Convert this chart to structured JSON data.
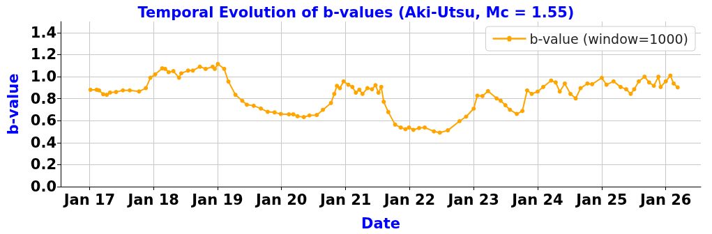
{
  "chart_data": {
    "type": "line",
    "title": "Temporal Evolution of b-values (Aki-Utsu, Mc = 1.55)",
    "xlabel": "Date",
    "ylabel": "b-value",
    "x": [
      "2017-01-06",
      "2017-02-10",
      "2017-02-24",
      "2017-03-20",
      "2017-04-09",
      "2017-04-28",
      "2017-06-01",
      "2017-07-10",
      "2017-08-18",
      "2017-10-10",
      "2017-11-18",
      "2017-12-14",
      "2018-01-10",
      "2018-02-19",
      "2018-03-08",
      "2018-03-28",
      "2018-04-24",
      "2018-05-26",
      "2018-06-08",
      "2018-07-17",
      "2018-08-13",
      "2018-09-22",
      "2018-10-25",
      "2018-12-04",
      "2018-12-16",
      "2019-01-03",
      "2019-02-08",
      "2019-03-04",
      "2019-04-13",
      "2019-05-22",
      "2019-06-17",
      "2019-07-26",
      "2019-09-05",
      "2019-10-14",
      "2019-11-22",
      "2019-12-28",
      "2020-02-12",
      "2020-03-08",
      "2020-04-01",
      "2020-05-07",
      "2020-06-08",
      "2020-07-20",
      "2020-08-24",
      "2020-10-09",
      "2020-10-28",
      "2020-11-12",
      "2020-11-29",
      "2020-12-20",
      "2021-01-16",
      "2021-02-08",
      "2021-02-28",
      "2021-03-20",
      "2021-04-07",
      "2021-05-05",
      "2021-05-31",
      "2021-06-20",
      "2021-07-07",
      "2021-07-23",
      "2021-08-06",
      "2021-09-01",
      "2021-10-10",
      "2021-11-11",
      "2021-12-08",
      "2021-12-28",
      "2022-01-22",
      "2022-02-24",
      "2022-03-28",
      "2022-05-19",
      "2022-06-22",
      "2022-08-07",
      "2022-10-12",
      "2022-11-19",
      "2023-01-01",
      "2023-01-22",
      "2023-02-20",
      "2023-03-24",
      "2023-05-12",
      "2023-06-04",
      "2023-07-01",
      "2023-07-27",
      "2023-09-04",
      "2023-10-06",
      "2023-11-02",
      "2023-11-28",
      "2024-01-01",
      "2024-02-02",
      "2024-03-18",
      "2024-04-13",
      "2024-05-06",
      "2024-06-04",
      "2024-07-06",
      "2024-08-05",
      "2024-09-02",
      "2024-10-11",
      "2024-11-07",
      "2025-01-01",
      "2025-01-28",
      "2025-03-09",
      "2025-04-18",
      "2025-05-20",
      "2025-06-15",
      "2025-07-05",
      "2025-07-31",
      "2025-09-02",
      "2025-09-28",
      "2025-10-25",
      "2025-11-20",
      "2025-12-03",
      "2026-01-01",
      "2026-01-27",
      "2026-02-15",
      "2026-03-10"
    ],
    "series": [
      {
        "name": "b-value (window=1000)",
        "color": "#ffa500",
        "values": [
          0.88,
          0.88,
          0.875,
          0.84,
          0.835,
          0.855,
          0.86,
          0.875,
          0.875,
          0.865,
          0.895,
          0.99,
          1.02,
          1.075,
          1.07,
          1.04,
          1.05,
          0.99,
          1.03,
          1.055,
          1.055,
          1.09,
          1.07,
          1.09,
          1.07,
          1.115,
          1.07,
          0.955,
          0.835,
          0.78,
          0.745,
          0.735,
          0.71,
          0.68,
          0.675,
          0.66,
          0.657,
          0.657,
          0.64,
          0.632,
          0.647,
          0.651,
          0.698,
          0.76,
          0.843,
          0.916,
          0.895,
          0.957,
          0.926,
          0.906,
          0.854,
          0.881,
          0.843,
          0.895,
          0.885,
          0.922,
          0.854,
          0.906,
          0.771,
          0.678,
          0.564,
          0.537,
          0.522,
          0.537,
          0.516,
          0.533,
          0.537,
          0.502,
          0.491,
          0.512,
          0.595,
          0.636,
          0.709,
          0.827,
          0.823,
          0.868,
          0.802,
          0.781,
          0.74,
          0.698,
          0.661,
          0.688,
          0.875,
          0.843,
          0.864,
          0.906,
          0.964,
          0.947,
          0.864,
          0.937,
          0.843,
          0.802,
          0.895,
          0.937,
          0.931,
          0.989,
          0.926,
          0.957,
          0.906,
          0.885,
          0.843,
          0.885,
          0.957,
          0.999,
          0.947,
          0.916,
          0.999,
          0.906,
          0.957,
          1.009,
          0.937,
          0.902
        ]
      }
    ],
    "xlim": [
      "2016-07-20",
      "2026-07-20"
    ],
    "xticks": [
      {
        "value": "2017-01-01",
        "label": "Jan 17"
      },
      {
        "value": "2018-01-01",
        "label": "Jan 18"
      },
      {
        "value": "2019-01-01",
        "label": "Jan 19"
      },
      {
        "value": "2020-01-01",
        "label": "Jan 20"
      },
      {
        "value": "2021-01-01",
        "label": "Jan 21"
      },
      {
        "value": "2022-01-01",
        "label": "Jan 22"
      },
      {
        "value": "2023-01-01",
        "label": "Jan 23"
      },
      {
        "value": "2024-01-01",
        "label": "Jan 24"
      },
      {
        "value": "2025-01-01",
        "label": "Jan 25"
      },
      {
        "value": "2026-01-01",
        "label": "Jan 26"
      }
    ],
    "ylim": [
      0,
      1.5
    ],
    "yticks": [
      {
        "value": 0,
        "label": "0.0"
      },
      {
        "value": 0.2,
        "label": "0.2"
      },
      {
        "value": 0.4,
        "label": "0.4"
      },
      {
        "value": 0.6,
        "label": "0.6"
      },
      {
        "value": 0.8,
        "label": "0.8"
      },
      {
        "value": 1.0,
        "label": "1.0"
      },
      {
        "value": 1.2,
        "label": "1.2"
      },
      {
        "value": 1.4,
        "label": "1.4"
      }
    ],
    "grid": true,
    "legend": "top right",
    "marker": "circle",
    "line_style": "solid"
  }
}
